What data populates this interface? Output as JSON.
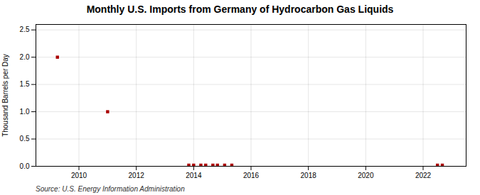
{
  "chart_data": {
    "type": "scatter",
    "title": "Monthly U.S. Imports from Germany of Hydrocarbon Gas Liquids",
    "ylabel": "Thousand Barrels per Day",
    "source": "Source: U.S. Energy Information Administration",
    "x": [
      2009.25,
      2011.0,
      2013.83,
      2014.0,
      2014.25,
      2014.42,
      2014.67,
      2014.83,
      2015.08,
      2015.33,
      2022.5,
      2022.67
    ],
    "values": [
      2.0,
      1.0,
      0.02,
      0.02,
      0.02,
      0.02,
      0.02,
      0.02,
      0.02,
      0.02,
      0.02,
      0.02
    ],
    "color": "#aa0000",
    "marker": "square",
    "xlim": [
      2008.5,
      2023.5
    ],
    "xticks": [
      2010,
      2012,
      2014,
      2016,
      2018,
      2020,
      2022
    ],
    "ylim": [
      0,
      2.6
    ],
    "yticks": [
      {
        "value": 0,
        "label": "0.0"
      },
      0.5,
      {
        "value": 1,
        "label": "1.0"
      },
      1.5,
      {
        "value": 2,
        "label": "2.0"
      },
      2.5
    ],
    "grid": true
  }
}
